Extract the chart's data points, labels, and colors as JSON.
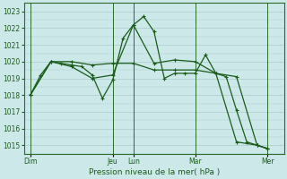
{
  "xlabel": "Pression niveau de la mer( hPa )",
  "bg_color": "#cce8e8",
  "grid_color": "#b0d8d8",
  "line_color": "#1a5c1a",
  "ylim": [
    1014.5,
    1023.5
  ],
  "yticks": [
    1015,
    1016,
    1017,
    1018,
    1019,
    1020,
    1021,
    1022,
    1023
  ],
  "xlim": [
    -0.3,
    12.3
  ],
  "day_labels": [
    "Dim",
    "",
    "Jeu",
    "Lun",
    "",
    "Mar",
    "",
    "Mer"
  ],
  "day_positions": [
    0,
    2,
    4,
    5,
    6.5,
    8,
    10,
    11.5
  ],
  "vline_positions": [
    0,
    4,
    5,
    8,
    11.5
  ],
  "series1_x": [
    0,
    0.5,
    1.0,
    1.5,
    2.0,
    2.5,
    3.0,
    3.5,
    4.0,
    4.5,
    5.0,
    5.5,
    6.0,
    6.5,
    7.0,
    7.5,
    8.0,
    8.5,
    9.0,
    9.5,
    10.0,
    10.5,
    11.0,
    11.5
  ],
  "series1_y": [
    1018.0,
    1019.2,
    1020.0,
    1019.9,
    1019.8,
    1019.7,
    1019.2,
    1017.8,
    1018.9,
    1021.4,
    1022.2,
    1022.7,
    1021.8,
    1019.0,
    1019.3,
    1019.3,
    1019.3,
    1020.4,
    1019.3,
    1019.1,
    1017.1,
    1015.2,
    1015.0,
    1014.8
  ],
  "series2_x": [
    0,
    1.0,
    2.0,
    3.0,
    4.0,
    5.0,
    6.0,
    7.0,
    8.0,
    9.0,
    10.0,
    11.0,
    11.5
  ],
  "series2_y": [
    1018.0,
    1020.0,
    1020.0,
    1019.8,
    1019.9,
    1019.9,
    1019.5,
    1019.5,
    1019.5,
    1019.3,
    1019.1,
    1015.0,
    1014.8
  ],
  "series3_x": [
    0,
    1.0,
    2.0,
    3.0,
    4.0,
    5.0,
    6.0,
    7.0,
    8.0,
    9.0,
    10.0,
    11.0,
    11.5
  ],
  "series3_y": [
    1018.0,
    1020.0,
    1019.7,
    1019.0,
    1019.2,
    1022.2,
    1019.9,
    1020.1,
    1020.0,
    1019.3,
    1015.2,
    1015.0,
    1014.8
  ]
}
